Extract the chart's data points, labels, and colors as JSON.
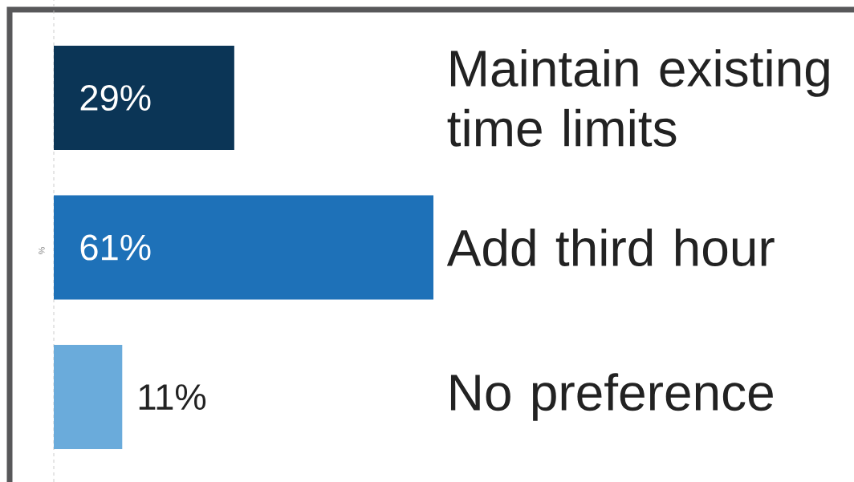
{
  "chart_data": {
    "type": "bar",
    "orientation": "horizontal",
    "ylabel": "%",
    "categories": [
      "Maintain existing time limits",
      "Add third hour",
      "No preference"
    ],
    "values": [
      29,
      61,
      11
    ],
    "colors": [
      "#0b3556",
      "#1e71b8",
      "#6aabdb"
    ],
    "value_labels": [
      "29%",
      "61%",
      "11%"
    ]
  }
}
